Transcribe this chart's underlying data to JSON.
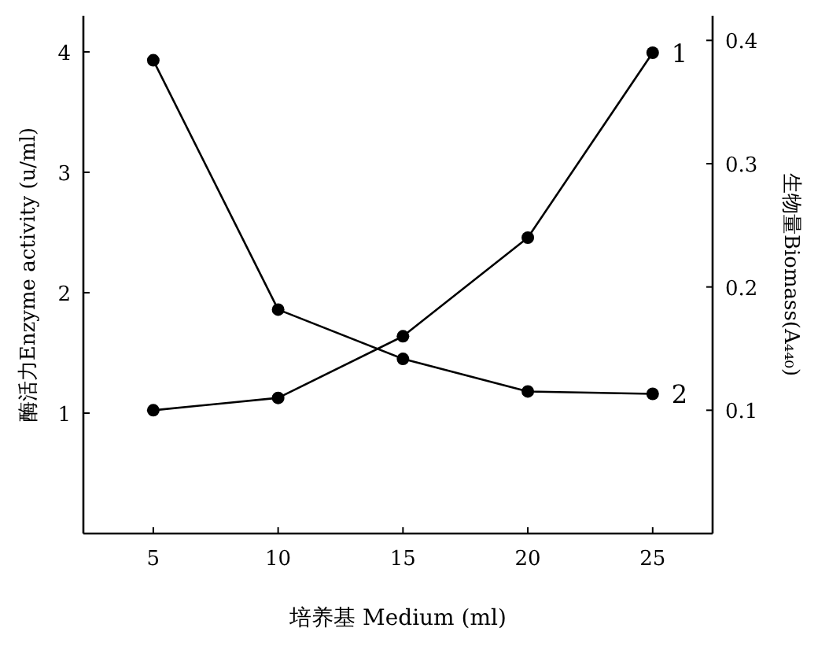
{
  "chart_data": {
    "type": "line",
    "xlabel": "培养基 Medium (ml)",
    "ylabel": "酶活力Enzyme activity (u/ml)",
    "y2label": "生物量Biomass(A₄₄₀)",
    "x": [
      5,
      10,
      15,
      20,
      25
    ],
    "series": [
      {
        "name": "1",
        "color": "#000000",
        "axis": "y2",
        "values": [
          0.1,
          0.11,
          0.16,
          0.24,
          0.39
        ]
      },
      {
        "name": "2",
        "color": "#000000",
        "axis": "y",
        "values": [
          3.93,
          1.86,
          1.45,
          1.18,
          1.16
        ]
      }
    ],
    "xlim": [
      2.2,
      27.4
    ],
    "xticks": [
      5,
      10,
      15,
      20,
      25
    ],
    "ylim": [
      0,
      4.3
    ],
    "yticks": [
      1,
      2,
      3,
      4
    ],
    "y2lim": [
      0,
      0.42
    ],
    "y2ticks": [
      0.1,
      0.2,
      0.3,
      0.4
    ],
    "marker": "circle",
    "line_style": "solid",
    "grid": false
  }
}
